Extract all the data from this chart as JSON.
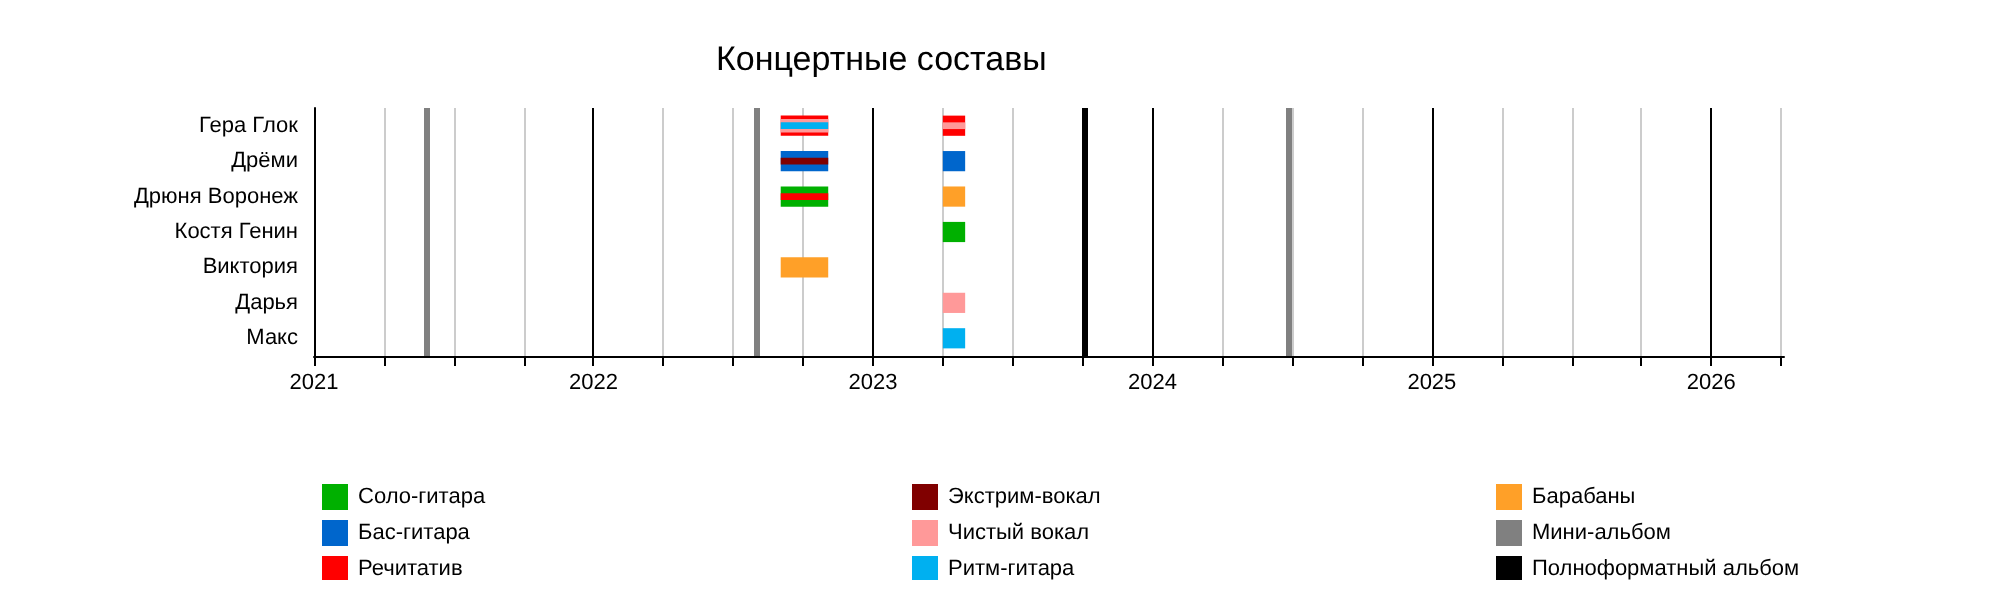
{
  "chart_data": {
    "type": "bar",
    "orientation": "horizontal",
    "title": "Концертные составы",
    "categories": [
      "Гера Глок",
      "Дрёми",
      "Дрюня Воронеж",
      "Костя Генин",
      "Виктория",
      "Дарья",
      "Макс"
    ],
    "series": [
      {
        "name": "Соло-гитара",
        "color": "#00b000",
        "base": [
          null,
          null,
          2022.67,
          null,
          null,
          null,
          null
        ],
        "values": [
          null,
          null,
          0.17,
          null,
          null,
          null,
          null
        ]
      },
      {
        "name": "Бас-гитара",
        "color": "#0066cc",
        "base": [
          null,
          2022.67,
          null,
          null,
          null,
          null,
          null
        ],
        "values": [
          null,
          0.17,
          null,
          null,
          null,
          null,
          null
        ]
      },
      {
        "name": "Речитатив",
        "color": "#ff0000",
        "base": [
          2022.67,
          null,
          2022.67,
          null,
          null,
          null,
          null
        ],
        "values": [
          0.17,
          null,
          0.17,
          null,
          null,
          null,
          null
        ]
      },
      {
        "name": "Экстрим-вокал",
        "color": "#800000",
        "base": [
          null,
          2022.67,
          null,
          null,
          null,
          null,
          null
        ],
        "values": [
          null,
          0.17,
          null,
          null,
          null,
          null,
          null
        ]
      },
      {
        "name": "Чистый вокал",
        "color": "#ff9999",
        "base": [
          2022.67,
          null,
          null,
          null,
          null,
          null,
          null
        ],
        "values": [
          0.17,
          null,
          null,
          null,
          null,
          null,
          null
        ]
      },
      {
        "name": "Ритм-гитара",
        "color": "#00b0f0",
        "base": [
          2022.67,
          null,
          null,
          null,
          null,
          null,
          null
        ],
        "values": [
          0.17,
          null,
          null,
          null,
          null,
          null,
          null
        ]
      },
      {
        "name": "Барабаны",
        "color": "#ffa028",
        "base": [
          null,
          null,
          null,
          null,
          2022.67,
          null,
          null
        ],
        "values": [
          null,
          null,
          null,
          null,
          0.17,
          null,
          null
        ]
      },
      {
        "color": "#ff0000",
        "base": [
          2023.25,
          null,
          null,
          null,
          null,
          null,
          null
        ],
        "values": [
          0.08,
          null,
          null,
          null,
          null,
          null,
          null
        ]
      },
      {
        "color": "#ff9999",
        "base": [
          2023.25,
          null,
          null,
          null,
          null,
          2023.25,
          null
        ],
        "values": [
          0.08,
          null,
          null,
          null,
          null,
          0.08,
          null
        ]
      },
      {
        "color": "#00b000",
        "base": [
          null,
          null,
          null,
          2023.25,
          null,
          null,
          null
        ],
        "values": [
          null,
          null,
          null,
          0.08,
          null,
          null,
          null
        ]
      },
      {
        "color": "#00b0f0",
        "base": [
          null,
          null,
          null,
          null,
          null,
          null,
          2023.25
        ],
        "values": [
          null,
          null,
          null,
          null,
          null,
          null,
          0.08
        ]
      },
      {
        "color": "#ffa028",
        "base": [
          null,
          null,
          2023.25,
          null,
          null,
          null,
          null
        ],
        "values": [
          null,
          null,
          0.08,
          null,
          null,
          null,
          null
        ]
      },
      {
        "color": "#0066cc",
        "base": [
          null,
          2023.25,
          null,
          null,
          null,
          null,
          null
        ],
        "values": [
          null,
          0.08,
          null,
          null,
          null,
          null,
          null
        ]
      }
    ],
    "ref_lines": [
      {
        "axis": "x",
        "value": 2021.4,
        "label": "Мини-альбом",
        "color": "#808080"
      },
      {
        "axis": "x",
        "value": 2022.58,
        "color": "#808080"
      },
      {
        "axis": "x",
        "value": 2023.76,
        "label": "Полноформатный альбом",
        "color": "#000000"
      },
      {
        "axis": "x",
        "value": 2024.49,
        "color": "#808080"
      }
    ],
    "xlim": [
      2021,
      2026.26
    ],
    "xticks": [
      2021,
      {
        "value": 2021.25,
        "label": null
      },
      {
        "value": 2021.5,
        "label": null
      },
      {
        "value": 2021.75,
        "label": null
      },
      2022,
      {
        "value": 2022.25,
        "label": null
      },
      {
        "value": 2022.5,
        "label": null
      },
      {
        "value": 2022.75,
        "label": null
      },
      2023,
      {
        "value": 2023.25,
        "label": null
      },
      {
        "value": 2023.5,
        "label": null
      },
      {
        "value": 2023.75,
        "label": null
      },
      2024,
      {
        "value": 2024.25,
        "label": null
      },
      {
        "value": 2024.5,
        "label": null
      },
      {
        "value": 2024.75,
        "label": null
      },
      2025,
      {
        "value": 2025.25,
        "label": null
      },
      {
        "value": 2025.5,
        "label": null
      },
      {
        "value": 2025.75,
        "label": null
      },
      2026,
      {
        "value": 2026.25,
        "label": null
      }
    ],
    "grid": "x",
    "legend": "bottom"
  }
}
